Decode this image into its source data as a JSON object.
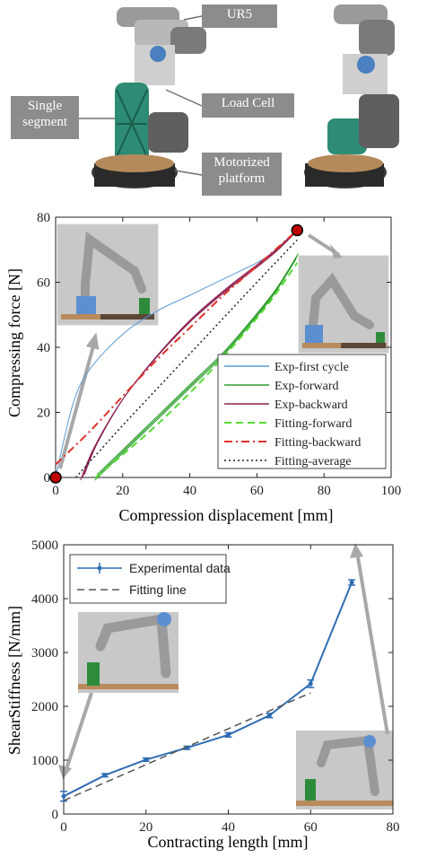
{
  "photo_panel": {
    "callouts": {
      "ur5": "UR5",
      "load_cell": "Load Cell",
      "single_segment": "Single segment",
      "motorized_platform": "Motorized platform"
    }
  },
  "colors": {
    "exp_first": "#5b9bd5",
    "exp_forward": "#2e9e2e",
    "exp_backward": "#8b2252",
    "fit_forward": "#55dd33",
    "fit_backward": "#e0302a",
    "fit_average": "#222222",
    "marker_red": "#c00000",
    "stiffness_line": "#2f6db3",
    "fitting_line": "#555555"
  },
  "chart_data": [
    {
      "type": "line",
      "xlabel": "Compression displacement [mm]",
      "ylabel": "Compressing force [N]",
      "xlim": [
        0,
        100
      ],
      "ylim": [
        0,
        80
      ],
      "xticks": [
        0,
        20,
        40,
        60,
        80,
        100
      ],
      "yticks": [
        0,
        20,
        40,
        60,
        80
      ],
      "grid": false,
      "legend_position": "bottom-right",
      "series": [
        {
          "name": "Exp-first cycle",
          "style": "solid",
          "color_key": "exp_first",
          "x": [
            0,
            5,
            10,
            20,
            30,
            40,
            50,
            60,
            66,
            72
          ],
          "y": [
            0,
            22,
            33,
            44,
            51,
            56,
            61,
            66,
            70,
            76
          ]
        },
        {
          "name": "Exp-forward",
          "style": "solid",
          "color_key": "exp_forward",
          "x": [
            12,
            20,
            30,
            40,
            50,
            60,
            66,
            72
          ],
          "y": [
            0,
            8,
            18,
            28,
            38,
            50,
            58,
            68
          ]
        },
        {
          "name": "Exp-backward",
          "style": "solid",
          "color_key": "exp_backward",
          "x": [
            8,
            12,
            20,
            30,
            40,
            50,
            60,
            66,
            72
          ],
          "y": [
            0,
            10,
            24,
            37,
            48,
            57,
            65,
            70,
            76
          ]
        },
        {
          "name": "Fitting-forward",
          "style": "dashed",
          "color_key": "fit_forward",
          "x": [
            12,
            20,
            30,
            40,
            50,
            60,
            66,
            72
          ],
          "y": [
            0,
            7,
            16,
            26,
            37,
            49,
            57,
            66
          ]
        },
        {
          "name": "Fitting-backward",
          "style": "dashdot",
          "color_key": "fit_backward",
          "x": [
            0,
            10,
            20,
            30,
            40,
            50,
            60,
            72
          ],
          "y": [
            4,
            14,
            25,
            36,
            46,
            56,
            65,
            76
          ]
        },
        {
          "name": "Fitting-average",
          "style": "dotted",
          "color_key": "fit_average",
          "x": [
            6,
            20,
            30,
            40,
            50,
            60,
            72
          ],
          "y": [
            0,
            16,
            27,
            38,
            49,
            60,
            73
          ]
        }
      ],
      "markers": [
        {
          "x": 0,
          "y": 0
        },
        {
          "x": 72,
          "y": 76
        }
      ]
    },
    {
      "type": "line",
      "xlabel": "Contracting length [mm]",
      "ylabel": "ShearStiffness [N/mm]",
      "xlim": [
        0,
        80
      ],
      "ylim": [
        0,
        5000
      ],
      "xticks": [
        0,
        20,
        40,
        60,
        80
      ],
      "yticks": [
        0,
        1000,
        2000,
        3000,
        4000,
        5000
      ],
      "grid": false,
      "legend_position": "top-left",
      "series": [
        {
          "name": "Experimental data",
          "style": "solid-errorbar",
          "color_key": "stiffness_line",
          "x": [
            0,
            10,
            20,
            30,
            40,
            50,
            60,
            70
          ],
          "y": [
            330,
            720,
            1010,
            1230,
            1470,
            1830,
            2420,
            4300
          ],
          "err": [
            90,
            30,
            30,
            30,
            40,
            40,
            70,
            50
          ]
        },
        {
          "name": "Fitting line",
          "style": "dashed",
          "color_key": "fitting_line",
          "x": [
            0,
            60
          ],
          "y": [
            250,
            2250
          ]
        }
      ]
    }
  ]
}
